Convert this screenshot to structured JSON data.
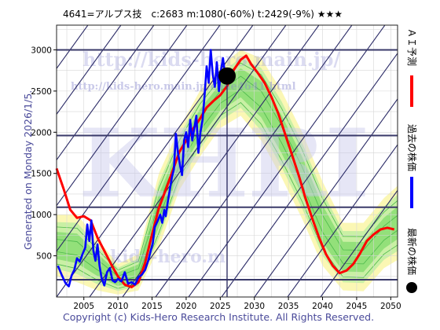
{
  "header": {
    "title": "4641=アルプス技　c:2683  m:1080(-60%)  t:2429(-9%)  ★★★"
  },
  "side_text": "Generated on Monday 2026/1/5.",
  "footer": "Copyright (c) Kids-Hero Research Institute. All Rights Reserved.",
  "watermarks": {
    "url1": "http://kids-hero.main.jp/",
    "url2": "http://kids-hero.main.jp/code4641.html",
    "big": "KHRI",
    "bottom": "kids-hero.m"
  },
  "legend": [
    {
      "label": "ＡＩ予測",
      "color": "#ff0000"
    },
    {
      "label": "過去の株価",
      "color": "#0000ff"
    },
    {
      "label": "最新の株価",
      "color": "#000000"
    }
  ],
  "chart_data": {
    "type": "line",
    "xlim": [
      2001,
      2051
    ],
    "ylim": [
      0,
      3300
    ],
    "x_ticks": [
      2005,
      2010,
      2015,
      2020,
      2025,
      2030,
      2035,
      2040,
      2045,
      2050
    ],
    "y_ticks": [
      500,
      1000,
      1500,
      2000,
      2500,
      3000
    ],
    "hlines": [
      3000,
      1960,
      1090,
      210
    ],
    "vline_x": 2026.0,
    "latest_point": {
      "x": 2026.0,
      "y": 2683
    },
    "past_price": [
      [
        2001.2,
        380
      ],
      [
        2001.8,
        260
      ],
      [
        2002.3,
        170
      ],
      [
        2002.8,
        130
      ],
      [
        2003.2,
        260
      ],
      [
        2003.6,
        330
      ],
      [
        2004.0,
        470
      ],
      [
        2004.4,
        430
      ],
      [
        2004.8,
        520
      ],
      [
        2005.2,
        600
      ],
      [
        2005.5,
        880
      ],
      [
        2005.8,
        680
      ],
      [
        2006.1,
        930
      ],
      [
        2006.4,
        560
      ],
      [
        2006.7,
        440
      ],
      [
        2007.0,
        640
      ],
      [
        2007.3,
        380
      ],
      [
        2007.6,
        230
      ],
      [
        2008.0,
        140
      ],
      [
        2008.4,
        300
      ],
      [
        2008.8,
        350
      ],
      [
        2009.2,
        200
      ],
      [
        2009.6,
        180
      ],
      [
        2010.0,
        220
      ],
      [
        2010.5,
        190
      ],
      [
        2011.0,
        300
      ],
      [
        2011.5,
        160
      ],
      [
        2012.0,
        180
      ],
      [
        2012.5,
        150
      ],
      [
        2013.0,
        240
      ],
      [
        2013.5,
        270
      ],
      [
        2014.0,
        330
      ],
      [
        2014.4,
        430
      ],
      [
        2014.8,
        560
      ],
      [
        2015.1,
        650
      ],
      [
        2015.4,
        850
      ],
      [
        2015.8,
        920
      ],
      [
        2016.2,
        1000
      ],
      [
        2016.5,
        900
      ],
      [
        2016.8,
        1060
      ],
      [
        2017.0,
        980
      ],
      [
        2017.3,
        1150
      ],
      [
        2017.6,
        1300
      ],
      [
        2017.9,
        1450
      ],
      [
        2018.2,
        1550
      ],
      [
        2018.5,
        1980
      ],
      [
        2018.8,
        1750
      ],
      [
        2019.1,
        1600
      ],
      [
        2019.4,
        1480
      ],
      [
        2019.7,
        1900
      ],
      [
        2020.0,
        2000
      ],
      [
        2020.3,
        1820
      ],
      [
        2020.6,
        2150
      ],
      [
        2020.9,
        1900
      ],
      [
        2021.2,
        2050
      ],
      [
        2021.5,
        2200
      ],
      [
        2021.8,
        1750
      ],
      [
        2022.1,
        2000
      ],
      [
        2022.4,
        2150
      ],
      [
        2022.7,
        2450
      ],
      [
        2023.0,
        2800
      ],
      [
        2023.3,
        2600
      ],
      [
        2023.6,
        3000
      ],
      [
        2023.9,
        2700
      ],
      [
        2024.2,
        2550
      ],
      [
        2024.5,
        2850
      ],
      [
        2024.8,
        2500
      ],
      [
        2025.1,
        2750
      ],
      [
        2025.4,
        2900
      ],
      [
        2025.7,
        2700
      ],
      [
        2026.0,
        2683
      ]
    ],
    "ai_forecast": [
      [
        2001.0,
        1560
      ],
      [
        2002.0,
        1320
      ],
      [
        2003.0,
        1060
      ],
      [
        2004.0,
        960
      ],
      [
        2005.0,
        980
      ],
      [
        2006.0,
        930
      ],
      [
        2007.0,
        720
      ],
      [
        2008.0,
        560
      ],
      [
        2009.0,
        400
      ],
      [
        2010.0,
        250
      ],
      [
        2011.0,
        150
      ],
      [
        2012.0,
        120
      ],
      [
        2013.0,
        180
      ],
      [
        2014.0,
        420
      ],
      [
        2015.0,
        760
      ],
      [
        2016.0,
        1080
      ],
      [
        2017.0,
        1300
      ],
      [
        2018.0,
        1530
      ],
      [
        2019.0,
        1760
      ],
      [
        2020.0,
        1900
      ],
      [
        2021.0,
        2040
      ],
      [
        2022.0,
        2160
      ],
      [
        2023.0,
        2300
      ],
      [
        2024.0,
        2380
      ],
      [
        2025.0,
        2450
      ],
      [
        2026.0,
        2560
      ],
      [
        2027.0,
        2760
      ],
      [
        2028.0,
        2880
      ],
      [
        2028.8,
        2930
      ],
      [
        2029.5,
        2830
      ],
      [
        2030.5,
        2720
      ],
      [
        2031.5,
        2600
      ],
      [
        2032.5,
        2430
      ],
      [
        2033.5,
        2230
      ],
      [
        2034.5,
        1980
      ],
      [
        2035.5,
        1730
      ],
      [
        2036.5,
        1480
      ],
      [
        2037.5,
        1200
      ],
      [
        2038.5,
        950
      ],
      [
        2039.5,
        720
      ],
      [
        2040.5,
        520
      ],
      [
        2041.5,
        380
      ],
      [
        2042.5,
        290
      ],
      [
        2043.5,
        320
      ],
      [
        2044.5,
        400
      ],
      [
        2045.5,
        530
      ],
      [
        2046.5,
        680
      ],
      [
        2047.5,
        760
      ],
      [
        2048.5,
        820
      ],
      [
        2049.5,
        840
      ],
      [
        2050.5,
        820
      ]
    ],
    "forecast_band": [
      [
        2001,
        250,
        1000
      ],
      [
        2004,
        180,
        1000
      ],
      [
        2007,
        80,
        700
      ],
      [
        2010,
        30,
        400
      ],
      [
        2013,
        80,
        520
      ],
      [
        2016,
        600,
        1500
      ],
      [
        2019,
        1300,
        2050
      ],
      [
        2022,
        1700,
        2500
      ],
      [
        2025,
        2050,
        2800
      ],
      [
        2028,
        2200,
        3000
      ],
      [
        2031,
        1900,
        2900
      ],
      [
        2034,
        1450,
        2500
      ],
      [
        2037,
        950,
        2000
      ],
      [
        2040,
        380,
        1400
      ],
      [
        2043,
        80,
        900
      ],
      [
        2046,
        70,
        900
      ],
      [
        2049,
        350,
        1200
      ],
      [
        2051,
        450,
        1350
      ]
    ]
  }
}
